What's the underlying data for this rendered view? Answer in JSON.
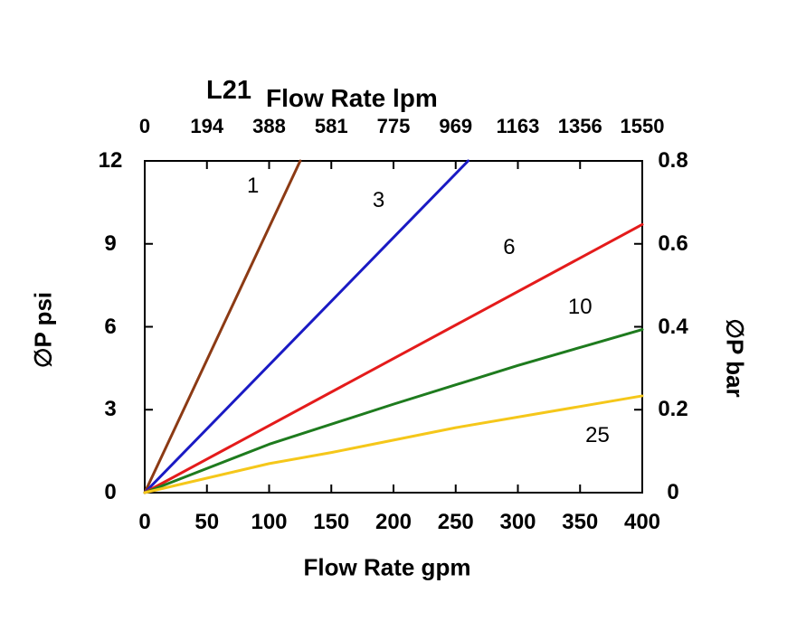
{
  "title": {
    "model": "L21",
    "top_axis": "Flow Rate lpm"
  },
  "axes": {
    "top": {
      "ticks": [
        "0",
        "194",
        "388",
        "581",
        "775",
        "969",
        "1163",
        "1356",
        "1550"
      ]
    },
    "bottom": {
      "label": "Flow Rate gpm",
      "ticks": [
        "0",
        "50",
        "100",
        "150",
        "200",
        "250",
        "300",
        "350",
        "400"
      ]
    },
    "left": {
      "label": "∅P psi",
      "ticks": [
        "12",
        "9",
        "6",
        "3",
        "0"
      ]
    },
    "right": {
      "label": "∅P bar",
      "ticks": [
        "0.8",
        "0.6",
        "0.4",
        "0.2",
        "0"
      ]
    }
  },
  "chart_data": {
    "type": "line",
    "title": "L21",
    "xlabel": "Flow Rate gpm",
    "x2label": "Flow Rate lpm",
    "ylabel": "∅P psi",
    "y2label": "∅P bar",
    "xlim": [
      0,
      400
    ],
    "ylim": [
      0,
      12
    ],
    "y2lim": [
      0,
      0.8
    ],
    "x_ticks_gpm": [
      0,
      50,
      100,
      150,
      200,
      250,
      300,
      350,
      400
    ],
    "x2_ticks_lpm": [
      0,
      194,
      388,
      581,
      775,
      969,
      1163,
      1356,
      1550
    ],
    "y_ticks_psi": [
      0,
      3,
      6,
      9,
      12
    ],
    "y2_ticks_bar": [
      0,
      0.2,
      0.4,
      0.6,
      0.8
    ],
    "grid": false,
    "legend": "none (inline curve labels)",
    "series": [
      {
        "name": "1",
        "color": "#8C3A14",
        "points": [
          [
            0,
            0
          ],
          [
            125,
            12
          ]
        ],
        "label_pos": [
          87,
          11.1
        ]
      },
      {
        "name": "3",
        "color": "#1A1AC4",
        "points": [
          [
            0,
            0
          ],
          [
            260,
            12
          ]
        ],
        "label_pos": [
          188,
          10.55
        ]
      },
      {
        "name": "6",
        "color": "#E41B1B",
        "points": [
          [
            0,
            0
          ],
          [
            400,
            9.7
          ]
        ],
        "label_pos": [
          293,
          8.85
        ]
      },
      {
        "name": "10",
        "color": "#1E7B1E",
        "points": [
          [
            0,
            0
          ],
          [
            100,
            1.75
          ],
          [
            200,
            3.2
          ],
          [
            300,
            4.6
          ],
          [
            400,
            5.9
          ]
        ],
        "label_pos": [
          350,
          6.7
        ]
      },
      {
        "name": "25",
        "color": "#F5C71A",
        "points": [
          [
            0,
            0
          ],
          [
            100,
            1.05
          ],
          [
            150,
            1.45
          ],
          [
            250,
            2.35
          ],
          [
            400,
            3.5
          ]
        ],
        "label_pos": [
          364,
          2.05
        ]
      }
    ]
  }
}
